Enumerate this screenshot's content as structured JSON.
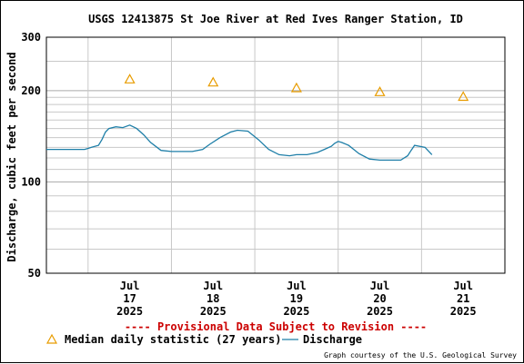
{
  "chart_data": {
    "type": "line",
    "title": "USGS 12413875 St Joe River at Red Ives Ranger Station, ID",
    "ylabel": "Discharge, cubic feet per second",
    "xlabel": "",
    "yscale": "log",
    "ylim": [
      50,
      300
    ],
    "yticks": [
      {
        "value": 50,
        "label": "50"
      },
      {
        "value": 100,
        "label": "100"
      },
      {
        "value": 200,
        "label": "200"
      },
      {
        "value": 300,
        "label": "300"
      }
    ],
    "yminor": [
      60,
      70,
      80,
      90,
      110,
      120,
      130,
      140,
      150,
      160,
      170,
      180,
      190,
      250
    ],
    "xlim": [
      "2025-07-16 00:00",
      "2025-07-21 12:00"
    ],
    "xticks": [
      {
        "x": "2025-07-17 00:00",
        "lines": [
          "Jul",
          "17",
          "2025"
        ]
      },
      {
        "x": "2025-07-18 00:00",
        "lines": [
          "Jul",
          "18",
          "2025"
        ]
      },
      {
        "x": "2025-07-19 00:00",
        "lines": [
          "Jul",
          "19",
          "2025"
        ]
      },
      {
        "x": "2025-07-20 00:00",
        "lines": [
          "Jul",
          "20",
          "2025"
        ]
      },
      {
        "x": "2025-07-21 00:00",
        "lines": [
          "Jul",
          "21",
          "2025"
        ]
      }
    ],
    "grid": true,
    "legend_position": "bottom",
    "series": [
      {
        "name": "Median daily statistic (27 years)",
        "kind": "marker",
        "marker": "triangle",
        "color": "#e89c00",
        "x": [
          "2025-07-17 00:00",
          "2025-07-18 00:00",
          "2025-07-19 00:00",
          "2025-07-20 00:00",
          "2025-07-21 00:00"
        ],
        "y": [
          218,
          213,
          204,
          198,
          191
        ]
      },
      {
        "name": "Discharge",
        "kind": "line",
        "color": "#1f7fa8",
        "x": [
          "2025-07-16 00:00",
          "2025-07-16 06:00",
          "2025-07-16 09:00",
          "2025-07-16 11:00",
          "2025-07-16 12:00",
          "2025-07-16 13:00",
          "2025-07-16 15:00",
          "2025-07-16 16:00",
          "2025-07-16 17:00",
          "2025-07-16 18:00",
          "2025-07-16 20:00",
          "2025-07-16 22:00",
          "2025-07-17 00:00",
          "2025-07-17 02:00",
          "2025-07-17 04:00",
          "2025-07-17 06:00",
          "2025-07-17 09:00",
          "2025-07-17 12:00",
          "2025-07-17 15:00",
          "2025-07-17 18:00",
          "2025-07-17 21:00",
          "2025-07-17 23:00",
          "2025-07-18 02:00",
          "2025-07-18 05:00",
          "2025-07-18 07:00",
          "2025-07-18 10:00",
          "2025-07-18 13:00",
          "2025-07-18 16:00",
          "2025-07-18 19:00",
          "2025-07-18 22:00",
          "2025-07-19 00:00",
          "2025-07-19 03:00",
          "2025-07-19 06:00",
          "2025-07-19 08:00",
          "2025-07-19 10:00",
          "2025-07-19 11:00",
          "2025-07-19 12:00",
          "2025-07-19 13:00",
          "2025-07-19 15:00",
          "2025-07-19 18:00",
          "2025-07-19 21:00",
          "2025-07-20 00:00",
          "2025-07-20 02:00",
          "2025-07-20 04:00",
          "2025-07-20 06:00",
          "2025-07-20 08:00",
          "2025-07-20 09:00",
          "2025-07-20 10:00",
          "2025-07-20 13:00",
          "2025-07-20 15:00"
        ],
        "y": [
          128,
          128,
          128,
          128,
          129,
          130,
          132,
          138,
          146,
          150,
          152,
          151,
          154,
          150,
          143,
          135,
          127,
          126,
          126,
          126,
          128,
          133,
          140,
          146,
          148,
          147,
          138,
          128,
          123,
          122,
          123,
          123,
          125,
          128,
          131,
          134,
          136,
          135,
          132,
          124,
          119,
          118,
          118,
          118,
          118,
          122,
          127,
          132,
          130,
          123
        ]
      }
    ],
    "legend": [
      {
        "series": 0,
        "label": "Median daily statistic (27 years)"
      },
      {
        "series": 1,
        "label": "Discharge"
      }
    ],
    "annotations": {
      "provisional": "---- Provisional Data Subject to Revision ----",
      "credit": "Graph courtesy of the U.S. Geological Survey"
    },
    "colors": {
      "provisional": "#cc0000",
      "grid": "#c8c8c8",
      "axis": "#000000"
    }
  }
}
